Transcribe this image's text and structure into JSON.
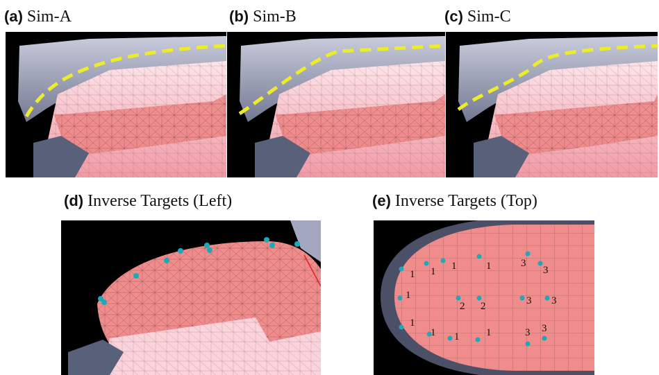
{
  "figure": {
    "panels": [
      {
        "letter": "a",
        "title": "Sim-A"
      },
      {
        "letter": "b",
        "title": "Sim-B"
      },
      {
        "letter": "c",
        "title": "Sim-C"
      },
      {
        "letter": "d",
        "title": "Inverse Targets (Left)"
      },
      {
        "letter": "e",
        "title": "Inverse Targets (Top)"
      }
    ],
    "target_labels": [
      "1",
      "1",
      "1",
      "1",
      "1",
      "1",
      "1",
      "1",
      "1",
      "2",
      "2",
      "3",
      "3",
      "3",
      "3",
      "3",
      "3",
      "3"
    ],
    "colors": {
      "tissue": "#f08c8c",
      "tissue_light": "#fbd3dc",
      "palate": "#a3a8c0",
      "dash_line": "#ecec2a",
      "marker": "#1ea9b8",
      "background": "#000000"
    }
  }
}
